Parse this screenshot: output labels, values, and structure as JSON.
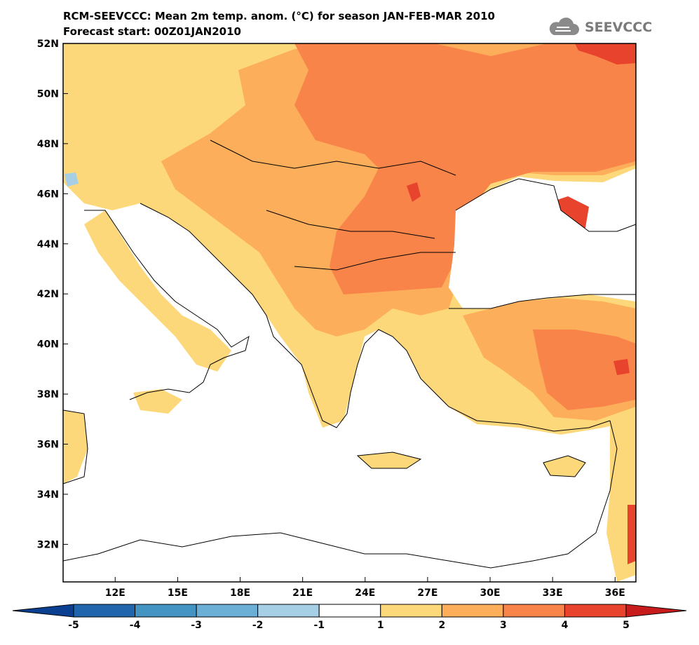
{
  "header": {
    "title_line1": "RCM-SEEVCCC: Mean 2m temp. anom. (°C) for season JAN-FEB-MAR 2010",
    "title_line2": "Forecast start: 00Z01JAN2010"
  },
  "logo": {
    "text": "SEEVCCC",
    "icon": "cloud-icon"
  },
  "map": {
    "lon_range": [
      9.5,
      37
    ],
    "lat_range": [
      30.5,
      52
    ],
    "lon_ticks": [
      "12E",
      "15E",
      "18E",
      "21E",
      "24E",
      "27E",
      "30E",
      "33E",
      "36E"
    ],
    "lat_ticks": [
      "52N",
      "50N",
      "48N",
      "46N",
      "44N",
      "42N",
      "40N",
      "38N",
      "36N",
      "34N",
      "32N"
    ]
  },
  "colorbar": {
    "labels": [
      "-5",
      "-4",
      "-3",
      "-2",
      "-1",
      "1",
      "2",
      "3",
      "4",
      "5"
    ],
    "colors": [
      "#0b3f8f",
      "#2166ac",
      "#4393c3",
      "#6baed6",
      "#a6cfe6",
      "#ffffff",
      "#fdd87a",
      "#fdae5a",
      "#f8844a",
      "#e8442d",
      "#c81b1b"
    ]
  }
}
